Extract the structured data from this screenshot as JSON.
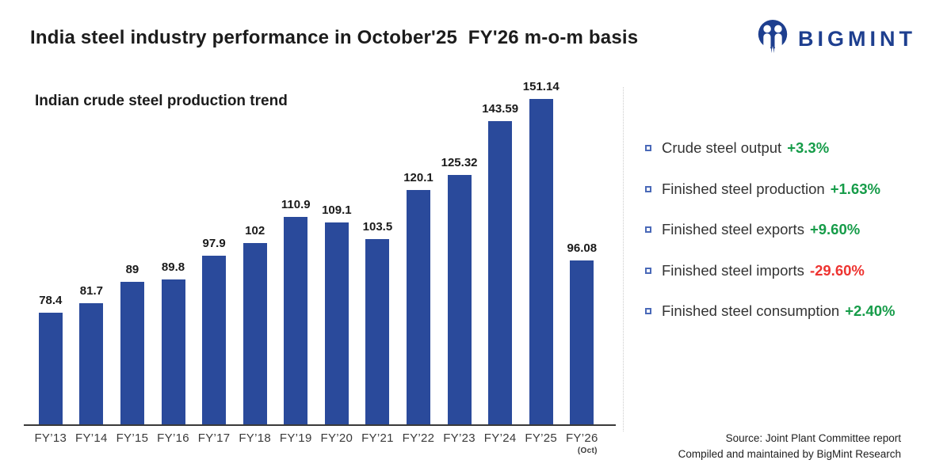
{
  "header": {
    "title": "India steel industry performance in October'25  FY'26 m-o-m basis",
    "logo_text": "BIGMINT",
    "brand_color": "#1e3f8f"
  },
  "chart": {
    "title": "Indian crude steel production trend"
  },
  "chart_data": {
    "type": "bar",
    "title": "Indian crude steel production trend",
    "categories": [
      "FY’13",
      "FY’14",
      "FY’15",
      "FY’16",
      "FY’17",
      "FY’18",
      "FY’19",
      "FY’20",
      "FY’21",
      "FY’22",
      "FY’23",
      "FY’24",
      "FY’25",
      "FY’26"
    ],
    "last_category_note": "(Oct)",
    "values": [
      78.4,
      81.7,
      89,
      89.8,
      97.9,
      102,
      110.9,
      109.1,
      103.5,
      120.1,
      125.32,
      143.59,
      151.14,
      96.08
    ],
    "bar_color": "#2a4a9b",
    "value_label_color": "#1a1a1a",
    "ylim": [
      40,
      154
    ],
    "grid": false,
    "legend": false,
    "xlabel": "",
    "ylabel": ""
  },
  "metrics": {
    "up_color": "#169c49",
    "down_color": "#ee3431",
    "bullet_color": "#4a69b8",
    "items": [
      {
        "label": "Crude steel output",
        "value": "+3.3%",
        "direction": "up"
      },
      {
        "label": "Finished steel production",
        "value": "+1.63%",
        "direction": "up"
      },
      {
        "label": "Finished steel exports",
        "value": "+9.60%",
        "direction": "up"
      },
      {
        "label": "Finished steel imports",
        "value": "-29.60%",
        "direction": "down"
      },
      {
        "label": "Finished steel consumption",
        "value": "+2.40%",
        "direction": "up"
      }
    ]
  },
  "footer": {
    "source_line1": "Source: Joint Plant Committee report",
    "source_line2": "Compiled and maintained by BigMint Research"
  },
  "icons": {
    "logo": "bigmint-people-monogram",
    "metric_bullet": "open-square-bullet"
  }
}
